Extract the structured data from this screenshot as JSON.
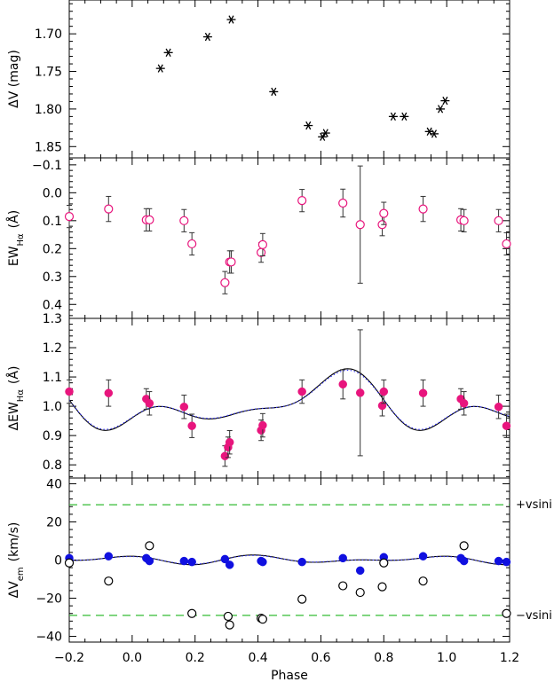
{
  "chart_data": [
    {
      "type": "scatter",
      "ylabel": "ΔV (mag)",
      "xlim": [
        -0.2,
        1.2
      ],
      "ylim": [
        1.865,
        1.655
      ],
      "y_inverted": true,
      "yticks": [
        "1.70",
        "1.75",
        "1.80",
        "1.85"
      ],
      "series": [
        {
          "marker": "asterisk",
          "color": "#000000",
          "points": [
            {
              "x": 0.09,
              "y": 1.746
            },
            {
              "x": 0.115,
              "y": 1.725
            },
            {
              "x": 0.24,
              "y": 1.704
            },
            {
              "x": 0.315,
              "y": 1.681
            },
            {
              "x": 0.45,
              "y": 1.777
            },
            {
              "x": 0.56,
              "y": 1.822
            },
            {
              "x": 0.605,
              "y": 1.837
            },
            {
              "x": 0.615,
              "y": 1.832
            },
            {
              "x": 0.83,
              "y": 1.81
            },
            {
              "x": 0.865,
              "y": 1.81
            },
            {
              "x": 0.945,
              "y": 1.83
            },
            {
              "x": 0.96,
              "y": 1.833
            },
            {
              "x": 0.98,
              "y": 1.8
            },
            {
              "x": 0.995,
              "y": 1.789
            }
          ]
        }
      ]
    },
    {
      "type": "scatter",
      "ylabel": "EW",
      "ylabel_sub": "Hα",
      "ylabel_unit": "(Å)",
      "xlim": [
        -0.2,
        1.2
      ],
      "ylim": [
        0.45,
        -0.125
      ],
      "y_inverted": true,
      "yticks": [
        "−0.1",
        "0.0",
        "0.1",
        "0.2",
        "0.3",
        "0.4"
      ],
      "series": [
        {
          "marker": "open-circle",
          "color": "#e8157d",
          "points": [
            {
              "x": -0.2,
              "y": 0.085,
              "err": 0.04
            },
            {
              "x": -0.075,
              "y": 0.058,
              "err": 0.045
            },
            {
              "x": 0.045,
              "y": 0.097,
              "err": 0.04
            },
            {
              "x": 0.055,
              "y": 0.097,
              "err": 0.04
            },
            {
              "x": 0.165,
              "y": 0.1,
              "err": 0.04
            },
            {
              "x": 0.19,
              "y": 0.183,
              "err": 0.04
            },
            {
              "x": 0.295,
              "y": 0.322,
              "err": 0.04
            },
            {
              "x": 0.31,
              "y": 0.248,
              "err": 0.04
            },
            {
              "x": 0.315,
              "y": 0.248,
              "err": 0.04
            },
            {
              "x": 0.41,
              "y": 0.214,
              "err": 0.035
            },
            {
              "x": 0.415,
              "y": 0.186,
              "err": 0.04
            },
            {
              "x": 0.54,
              "y": 0.028,
              "err": 0.04
            },
            {
              "x": 0.67,
              "y": 0.037,
              "err": 0.05
            },
            {
              "x": 0.725,
              "y": 0.114,
              "err": 0.21
            },
            {
              "x": 0.795,
              "y": 0.114,
              "err": 0.04
            },
            {
              "x": 0.8,
              "y": 0.074,
              "err": 0.04
            },
            {
              "x": 0.925,
              "y": 0.058,
              "err": 0.045
            },
            {
              "x": 1.045,
              "y": 0.097,
              "err": 0.04
            },
            {
              "x": 1.055,
              "y": 0.1,
              "err": 0.04
            },
            {
              "x": 1.165,
              "y": 0.1,
              "err": 0.04
            },
            {
              "x": 1.19,
              "y": 0.183,
              "err": 0.04
            }
          ]
        }
      ]
    },
    {
      "type": "scatter",
      "ylabel": "ΔEW",
      "ylabel_sub": "Hα",
      "ylabel_unit": "(Å)",
      "xlim": [
        -0.2,
        1.2
      ],
      "ylim": [
        0.755,
        1.3
      ],
      "yticks": [
        "0.8",
        "0.9",
        "1.0",
        "1.1",
        "1.2",
        "1.3"
      ],
      "series": [
        {
          "marker": "filled-circle",
          "color": "#e8157d",
          "points": [
            {
              "x": -0.2,
              "y": 1.05,
              "err": 0.04
            },
            {
              "x": -0.075,
              "y": 1.045,
              "err": 0.045
            },
            {
              "x": 0.045,
              "y": 1.025,
              "err": 0.035
            },
            {
              "x": 0.055,
              "y": 1.01,
              "err": 0.04
            },
            {
              "x": 0.165,
              "y": 0.998,
              "err": 0.04
            },
            {
              "x": 0.19,
              "y": 0.933,
              "err": 0.04
            },
            {
              "x": 0.295,
              "y": 0.83,
              "err": 0.035
            },
            {
              "x": 0.305,
              "y": 0.86,
              "err": 0.035
            },
            {
              "x": 0.31,
              "y": 0.877,
              "err": 0.04
            },
            {
              "x": 0.41,
              "y": 0.918,
              "err": 0.035
            },
            {
              "x": 0.415,
              "y": 0.935,
              "err": 0.04
            },
            {
              "x": 0.54,
              "y": 1.05,
              "err": 0.04
            },
            {
              "x": 0.67,
              "y": 1.075,
              "err": 0.05
            },
            {
              "x": 0.725,
              "y": 1.046,
              "err": 0.215
            },
            {
              "x": 0.795,
              "y": 1.002,
              "err": 0.035
            },
            {
              "x": 0.8,
              "y": 1.05,
              "err": 0.04
            },
            {
              "x": 0.925,
              "y": 1.045,
              "err": 0.045
            },
            {
              "x": 1.045,
              "y": 1.025,
              "err": 0.035
            },
            {
              "x": 1.055,
              "y": 1.01,
              "err": 0.04
            },
            {
              "x": 1.165,
              "y": 0.998,
              "err": 0.04
            },
            {
              "x": 1.19,
              "y": 0.933,
              "err": 0.04
            }
          ]
        }
      ],
      "model_curves": [
        {
          "style": "solid",
          "color": "#000000"
        },
        {
          "style": "dotted",
          "color": "#3333ff"
        }
      ]
    },
    {
      "type": "scatter",
      "ylabel": "ΔV",
      "ylabel_sub": "em",
      "ylabel_unit": "(km/s)",
      "xlabel": "Phase",
      "xlim": [
        -0.2,
        1.2
      ],
      "ylim": [
        -43,
        43
      ],
      "yticks": [
        "−40",
        "−20",
        "0",
        "20",
        "40"
      ],
      "xticks": [
        "−0.2",
        "0.0",
        "0.2",
        "0.4",
        "0.6",
        "0.8",
        "1.0",
        "1.2"
      ],
      "reference_lines": [
        {
          "y": 29,
          "label": "+vsini",
          "color": "#33bb33",
          "style": "dashed"
        },
        {
          "y": -29,
          "label": "−vsini",
          "color": "#33bb33",
          "style": "dashed"
        }
      ],
      "series": [
        {
          "marker": "filled-circle",
          "color": "#1010e0",
          "points": [
            {
              "x": -0.2,
              "y": 1
            },
            {
              "x": -0.075,
              "y": 2
            },
            {
              "x": 0.045,
              "y": 1
            },
            {
              "x": 0.055,
              "y": -0.5
            },
            {
              "x": 0.165,
              "y": -0.5
            },
            {
              "x": 0.19,
              "y": -1
            },
            {
              "x": 0.295,
              "y": 0.5
            },
            {
              "x": 0.31,
              "y": -2.5
            },
            {
              "x": 0.41,
              "y": -0.5
            },
            {
              "x": 0.415,
              "y": -1
            },
            {
              "x": 0.54,
              "y": -1
            },
            {
              "x": 0.67,
              "y": 1
            },
            {
              "x": 0.725,
              "y": -5.5
            },
            {
              "x": 0.8,
              "y": 1.5
            },
            {
              "x": 0.925,
              "y": 2
            },
            {
              "x": 1.045,
              "y": 1
            },
            {
              "x": 1.055,
              "y": -0.5
            },
            {
              "x": 1.165,
              "y": -0.5
            },
            {
              "x": 1.19,
              "y": -1
            }
          ]
        },
        {
          "marker": "open-circle",
          "color": "#000000",
          "points": [
            {
              "x": -0.2,
              "y": -1.5
            },
            {
              "x": -0.075,
              "y": -11
            },
            {
              "x": 0.055,
              "y": 7.5
            },
            {
              "x": 0.19,
              "y": -28
            },
            {
              "x": 0.305,
              "y": -29.5
            },
            {
              "x": 0.31,
              "y": -34
            },
            {
              "x": 0.41,
              "y": -30.5
            },
            {
              "x": 0.415,
              "y": -31
            },
            {
              "x": 0.54,
              "y": -20.5
            },
            {
              "x": 0.67,
              "y": -13.5
            },
            {
              "x": 0.725,
              "y": -17
            },
            {
              "x": 0.795,
              "y": -14
            },
            {
              "x": 0.8,
              "y": -1.5
            },
            {
              "x": 0.925,
              "y": -11
            },
            {
              "x": 1.055,
              "y": 7.5
            },
            {
              "x": 1.19,
              "y": -28
            }
          ]
        }
      ],
      "model_curves": [
        {
          "style": "solid",
          "color": "#000000"
        },
        {
          "style": "dotted",
          "color": "#3333ff"
        }
      ]
    }
  ]
}
